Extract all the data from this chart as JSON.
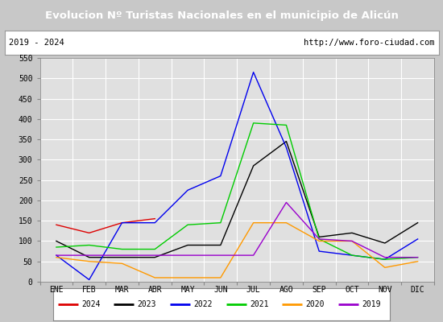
{
  "title": "Evolucion Nº Turistas Nacionales en el municipio de Alicún",
  "subtitle_left": "2019 - 2024",
  "subtitle_right": "http://www.foro-ciudad.com",
  "title_bg_color": "#4c7fd4",
  "title_text_color": "#ffffff",
  "subtitle_bg_color": "#ffffff",
  "subtitle_border_color": "#999999",
  "plot_bg_color": "#e0e0e0",
  "grid_color": "#ffffff",
  "outer_bg_color": "#c8c8c8",
  "months": [
    "ENE",
    "FEB",
    "MAR",
    "ABR",
    "MAY",
    "JUN",
    "JUL",
    "AGO",
    "SEP",
    "OCT",
    "NOV",
    "DIC"
  ],
  "ylim": [
    0,
    550
  ],
  "yticks": [
    0,
    50,
    100,
    150,
    200,
    250,
    300,
    350,
    400,
    450,
    500,
    550
  ],
  "series": {
    "2024": {
      "color": "#dd0000",
      "data": [
        140,
        120,
        145,
        155,
        null,
        null,
        null,
        null,
        null,
        null,
        null,
        null
      ]
    },
    "2023": {
      "color": "#000000",
      "data": [
        100,
        60,
        60,
        60,
        90,
        90,
        285,
        345,
        110,
        120,
        95,
        145
      ]
    },
    "2022": {
      "color": "#0000ee",
      "data": [
        65,
        5,
        145,
        145,
        225,
        260,
        515,
        330,
        75,
        65,
        55,
        105
      ]
    },
    "2021": {
      "color": "#00cc00",
      "data": [
        85,
        90,
        80,
        80,
        140,
        145,
        390,
        385,
        105,
        65,
        55,
        60
      ]
    },
    "2020": {
      "color": "#ff9900",
      "data": [
        60,
        50,
        45,
        10,
        10,
        10,
        145,
        145,
        100,
        100,
        35,
        50
      ]
    },
    "2019": {
      "color": "#9900cc",
      "data": [
        65,
        65,
        65,
        65,
        65,
        65,
        65,
        195,
        105,
        100,
        60,
        60
      ]
    }
  },
  "legend_order": [
    "2024",
    "2023",
    "2022",
    "2021",
    "2020",
    "2019"
  ]
}
